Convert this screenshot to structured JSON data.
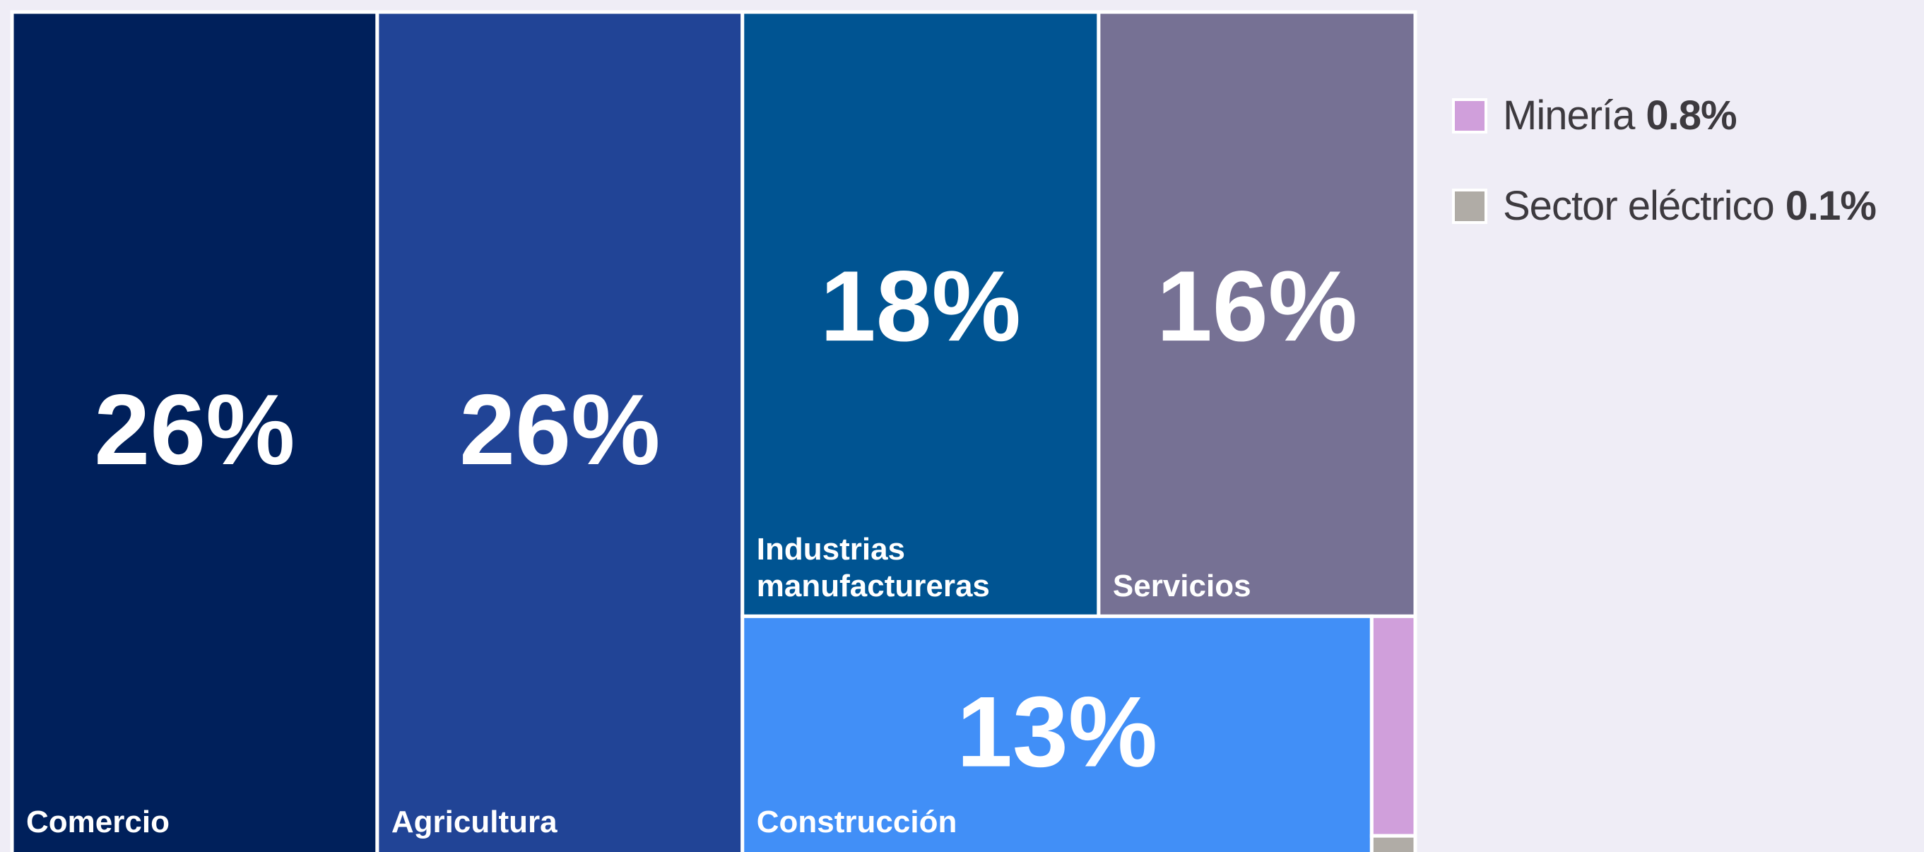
{
  "chart_data": {
    "type": "treemap",
    "categories": [
      "Comercio",
      "Agricultura",
      "Industrias manufactureras",
      "Servicios",
      "Construcción",
      "Minería",
      "Sector eléctrico"
    ],
    "values": [
      26,
      26,
      18,
      16,
      13,
      0.8,
      0.1
    ],
    "value_labels": [
      "26%",
      "26%",
      "18%",
      "16%",
      "13%",
      "0.8%",
      "0.1%"
    ],
    "colors": [
      "#00205b",
      "#214496",
      "#005492",
      "#767194",
      "#418ff7",
      "#d09fdb",
      "#b0aca6"
    ]
  }
}
